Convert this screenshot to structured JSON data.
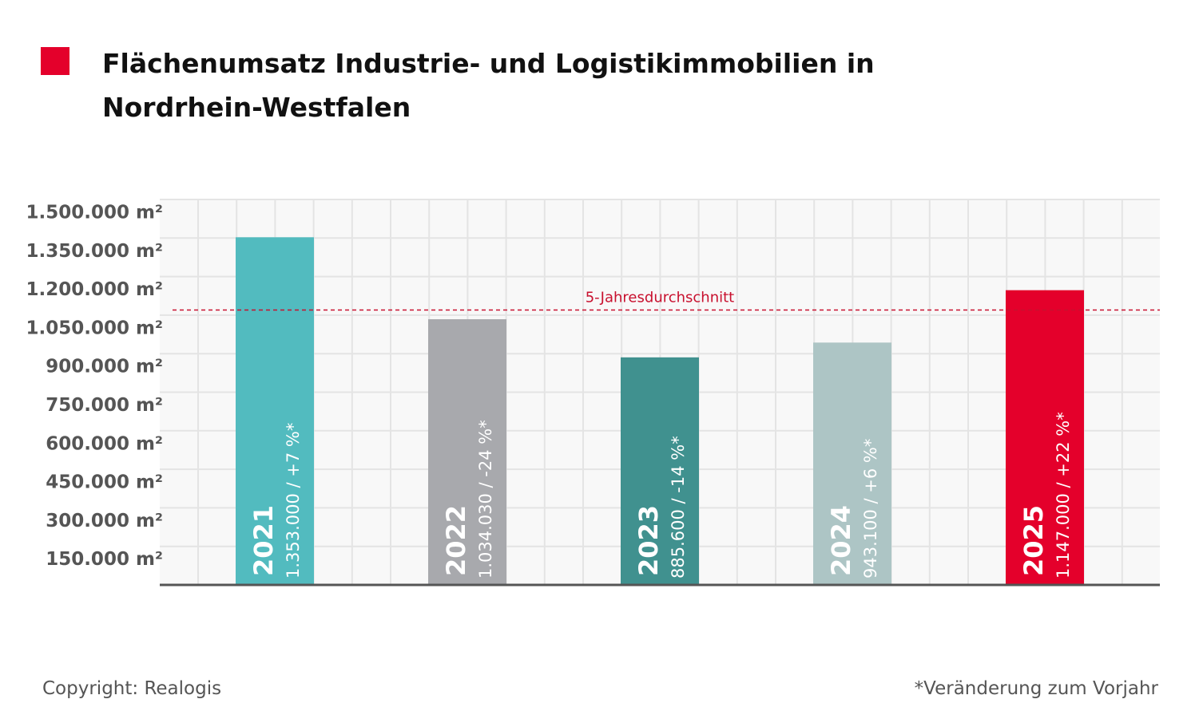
{
  "chart_data": {
    "type": "bar",
    "title": "Flächenumsatz Industrie- und Logistikimmobilien in Nordrhein-Westfalen",
    "categories": [
      "2021",
      "2022",
      "2023",
      "2024",
      "2025"
    ],
    "values": [
      1353000,
      1034030,
      885600,
      943100,
      1147000
    ],
    "value_labels": [
      "1.353.000 / +7 %*",
      "1.034.030 / -24 %*",
      "885.600 / -14 %*",
      "943.100 / +6 %*",
      "1.147.000 / +22 %*"
    ],
    "colors": [
      "#52bbbf",
      "#a8a9ad",
      "#40918f",
      "#adc5c5",
      "#e4002b"
    ],
    "ylim": [
      0,
      1500000
    ],
    "yticks": [
      {
        "value": 150000,
        "label": "150.000 m²"
      },
      {
        "value": 300000,
        "label": "300.000 m²"
      },
      {
        "value": 450000,
        "label": "450.000 m²"
      },
      {
        "value": 600000,
        "label": "600.000 m²"
      },
      {
        "value": 750000,
        "label": "750.000 m²"
      },
      {
        "value": 900000,
        "label": "900.000 m²"
      },
      {
        "value": 1050000,
        "label": "1.050.000 m²"
      },
      {
        "value": 1200000,
        "label": "1.200.000 m²"
      },
      {
        "value": 1350000,
        "label": "1.350.000 m²"
      },
      {
        "value": 1500000,
        "label": "1.500.000 m²"
      }
    ],
    "grid": true,
    "reference_line": {
      "value": 1070000,
      "label": "5-Jahresdurchschnitt",
      "color": "#c8102e"
    },
    "source": "Copyright: Realogis",
    "note": "*Veränderung zum Vorjahr"
  }
}
